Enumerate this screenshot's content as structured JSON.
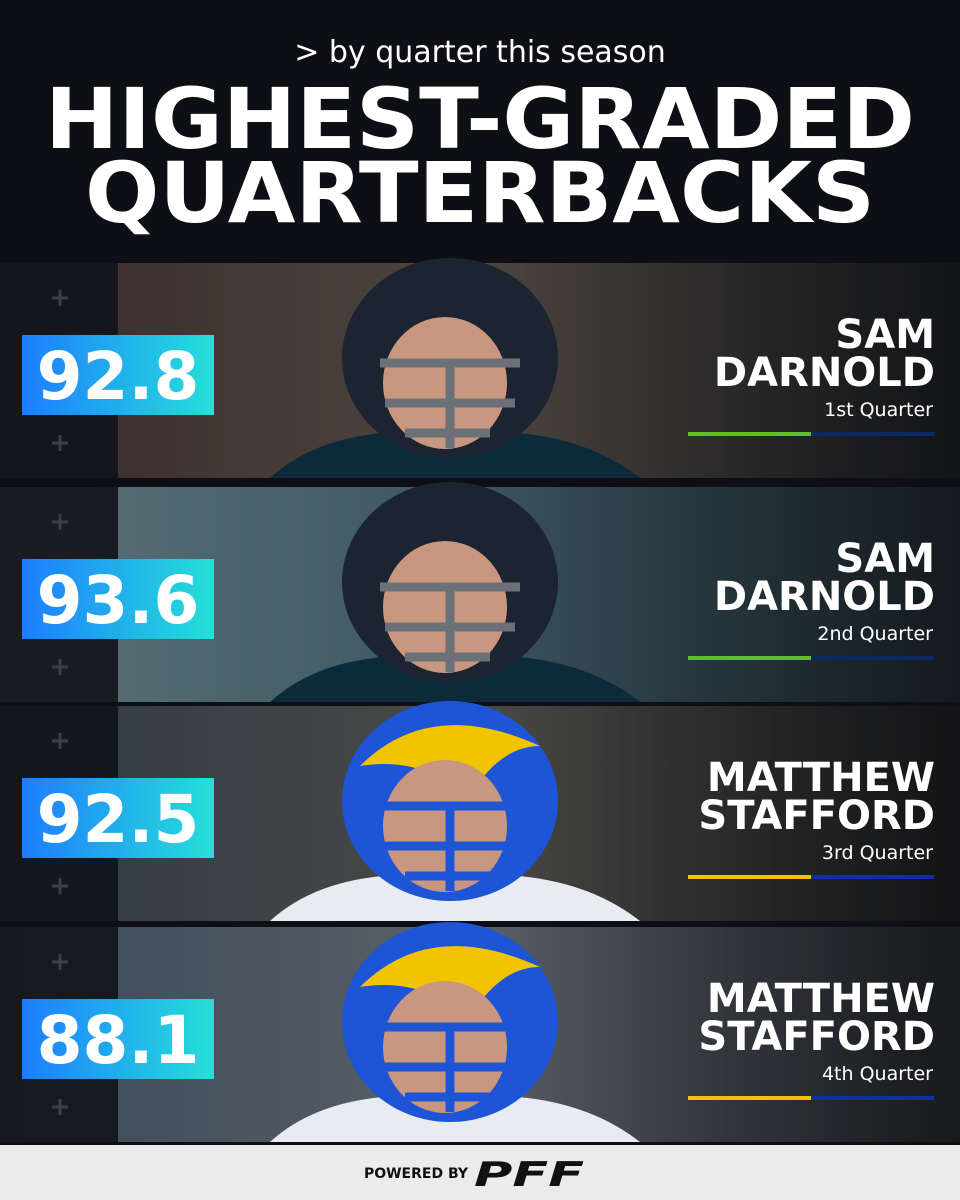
{
  "header": {
    "subtitle": "> by quarter this season",
    "title_lines": [
      "HIGHEST-GRADED",
      "QUARTERBACKS"
    ]
  },
  "rows": [
    {
      "grade": 92.8,
      "first_name": "SAM",
      "last_name": "DARNOLD",
      "quarter": "1st Quarter",
      "team": "seahawks"
    },
    {
      "grade": 93.6,
      "first_name": "SAM",
      "last_name": "DARNOLD",
      "quarter": "2nd Quarter",
      "team": "seahawks"
    },
    {
      "grade": 92.5,
      "first_name": "MATTHEW",
      "last_name": "STAFFORD",
      "quarter": "3rd Quarter",
      "team": "rams"
    },
    {
      "grade": 88.1,
      "first_name": "MATTHEW",
      "last_name": "STAFFORD",
      "quarter": "4th Quarter",
      "team": "rams"
    }
  ],
  "footer": {
    "powered_by": "POWERED BY",
    "brand": "PFF"
  }
}
